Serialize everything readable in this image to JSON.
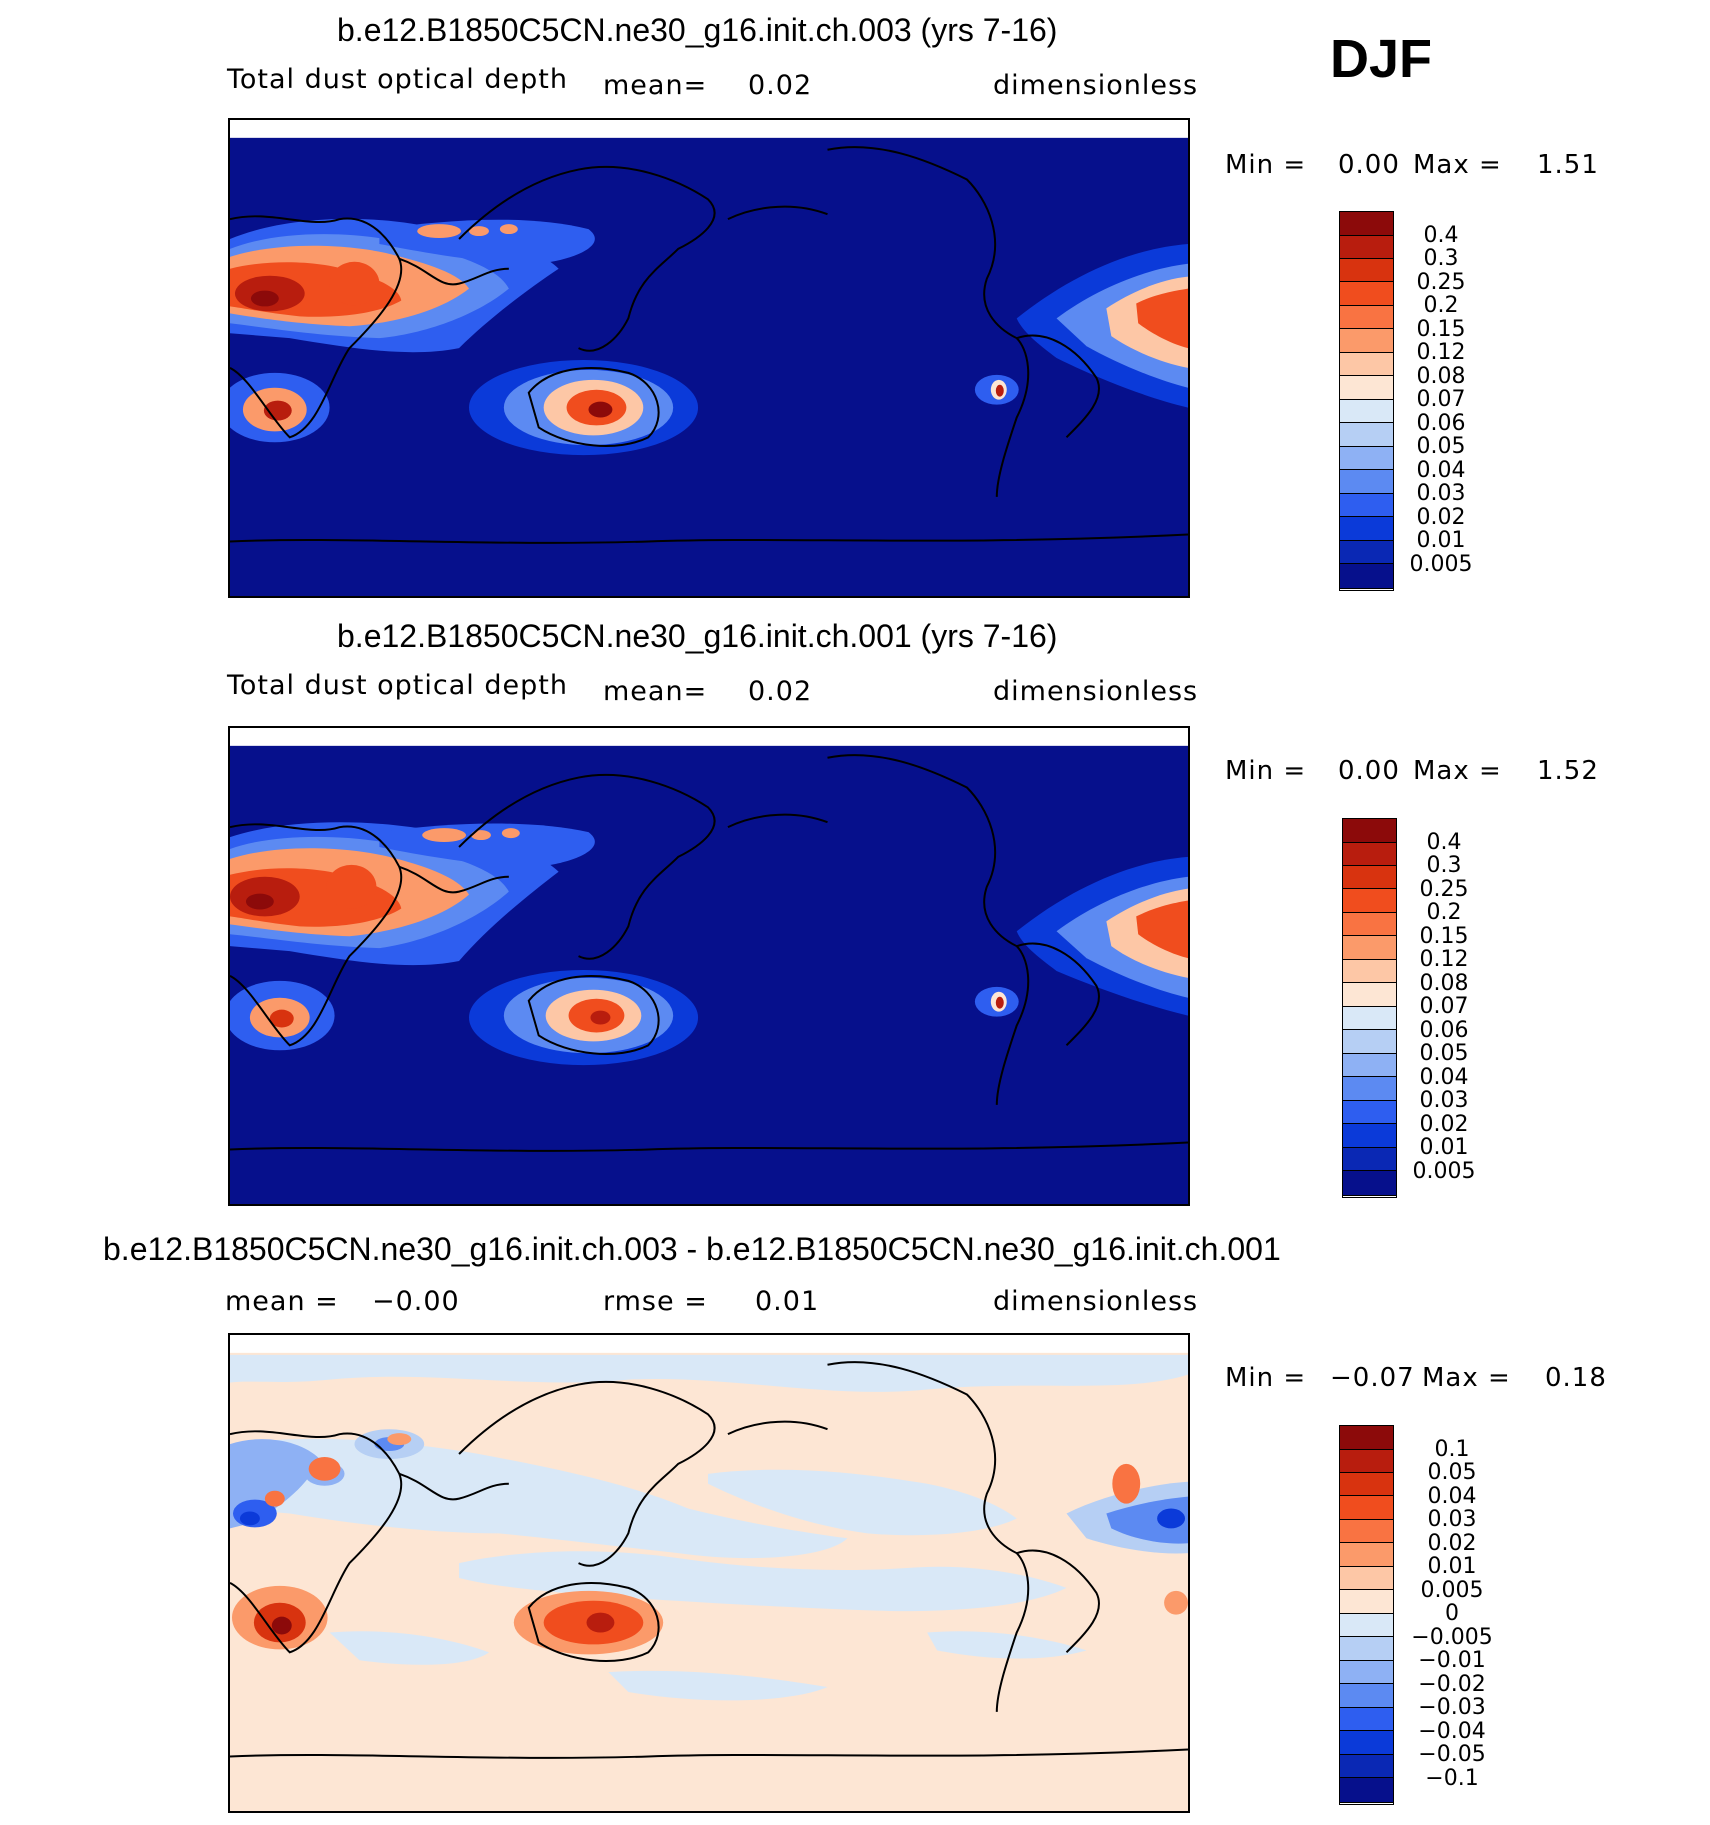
{
  "season": "DJF",
  "panels": [
    {
      "id": "case1",
      "title": "b.e12.B1850C5CN.ne30_g16.init.ch.003 (yrs 7-16)",
      "variable": "Total dust optical depth",
      "stat1": "mean=",
      "stat1_value": "0.02",
      "units": "dimensionless",
      "min_label": "Min =",
      "min_value": "0.00",
      "max_label": "Max =",
      "max_value": "1.51",
      "colorbar": {
        "levels": [
          "0.4",
          "0.3",
          "0.25",
          "0.2",
          "0.15",
          "0.12",
          "0.08",
          "0.07",
          "0.06",
          "0.05",
          "0.04",
          "0.03",
          "0.02",
          "0.01",
          "0.005"
        ],
        "colors": [
          "#8c0a0a",
          "#b81d0e",
          "#d8330f",
          "#f04d1e",
          "#f97342",
          "#fb9a6a",
          "#fdc7a6",
          "#fde6d4",
          "#d9e8f7",
          "#b6cff4",
          "#8eb1f4",
          "#5c8af2",
          "#2e5ef0",
          "#0b3ad9",
          "#0a28b4",
          "#06108c"
        ]
      }
    },
    {
      "id": "case2",
      "title": "b.e12.B1850C5CN.ne30_g16.init.ch.001 (yrs 7-16)",
      "variable": "Total dust optical depth",
      "stat1": "mean=",
      "stat1_value": "0.02",
      "units": "dimensionless",
      "min_label": "Min =",
      "min_value": "0.00",
      "max_label": "Max =",
      "max_value": "1.52",
      "colorbar": {
        "levels": [
          "0.4",
          "0.3",
          "0.25",
          "0.2",
          "0.15",
          "0.12",
          "0.08",
          "0.07",
          "0.06",
          "0.05",
          "0.04",
          "0.03",
          "0.02",
          "0.01",
          "0.005"
        ],
        "colors": [
          "#8c0a0a",
          "#b81d0e",
          "#d8330f",
          "#f04d1e",
          "#f97342",
          "#fb9a6a",
          "#fdc7a6",
          "#fde6d4",
          "#d9e8f7",
          "#b6cff4",
          "#8eb1f4",
          "#5c8af2",
          "#2e5ef0",
          "#0b3ad9",
          "#0a28b4",
          "#06108c"
        ]
      }
    },
    {
      "id": "diff",
      "title": "b.e12.B1850C5CN.ne30_g16.init.ch.003 - b.e12.B1850C5CN.ne30_g16.init.ch.001",
      "stat1": "mean =",
      "stat1_value": "−0.00",
      "stat2": "rmse =",
      "stat2_value": "0.01",
      "units": "dimensionless",
      "min_label": "Min =",
      "min_value": "−0.07",
      "max_label": "Max =",
      "max_value": "0.18",
      "colorbar": {
        "levels": [
          "0.1",
          "0.05",
          "0.04",
          "0.03",
          "0.02",
          "0.01",
          "0.005",
          "0",
          "−0.005",
          "−0.01",
          "−0.02",
          "−0.03",
          "−0.04",
          "−0.05",
          "−0.1"
        ],
        "colors": [
          "#8c0a0a",
          "#b81d0e",
          "#d8330f",
          "#f04d1e",
          "#f97342",
          "#fb9a6a",
          "#fdc7a6",
          "#fde6d4",
          "#d9e8f7",
          "#b6cff4",
          "#8eb1f4",
          "#5c8af2",
          "#2e5ef0",
          "#0b3ad9",
          "#0a28b4",
          "#06108c"
        ]
      }
    }
  ]
}
